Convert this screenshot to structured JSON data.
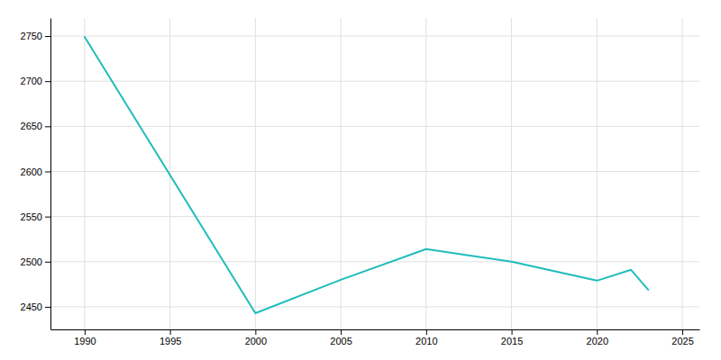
{
  "chart_data": {
    "type": "line",
    "x": [
      1990,
      2000,
      2005,
      2010,
      2015,
      2020,
      2022,
      2023
    ],
    "values": [
      2749,
      2443,
      2480,
      2514,
      2500,
      2479,
      2491,
      2469
    ],
    "color": "#20BCBC",
    "xlim": [
      1988,
      2026
    ],
    "ylim": [
      2425,
      2770
    ],
    "xticks": [
      1990,
      1995,
      2000,
      2005,
      2010,
      2015,
      2020,
      2025
    ],
    "yticks": [
      2450,
      2500,
      2550,
      2600,
      2650,
      2700,
      2750
    ],
    "grid": true
  }
}
